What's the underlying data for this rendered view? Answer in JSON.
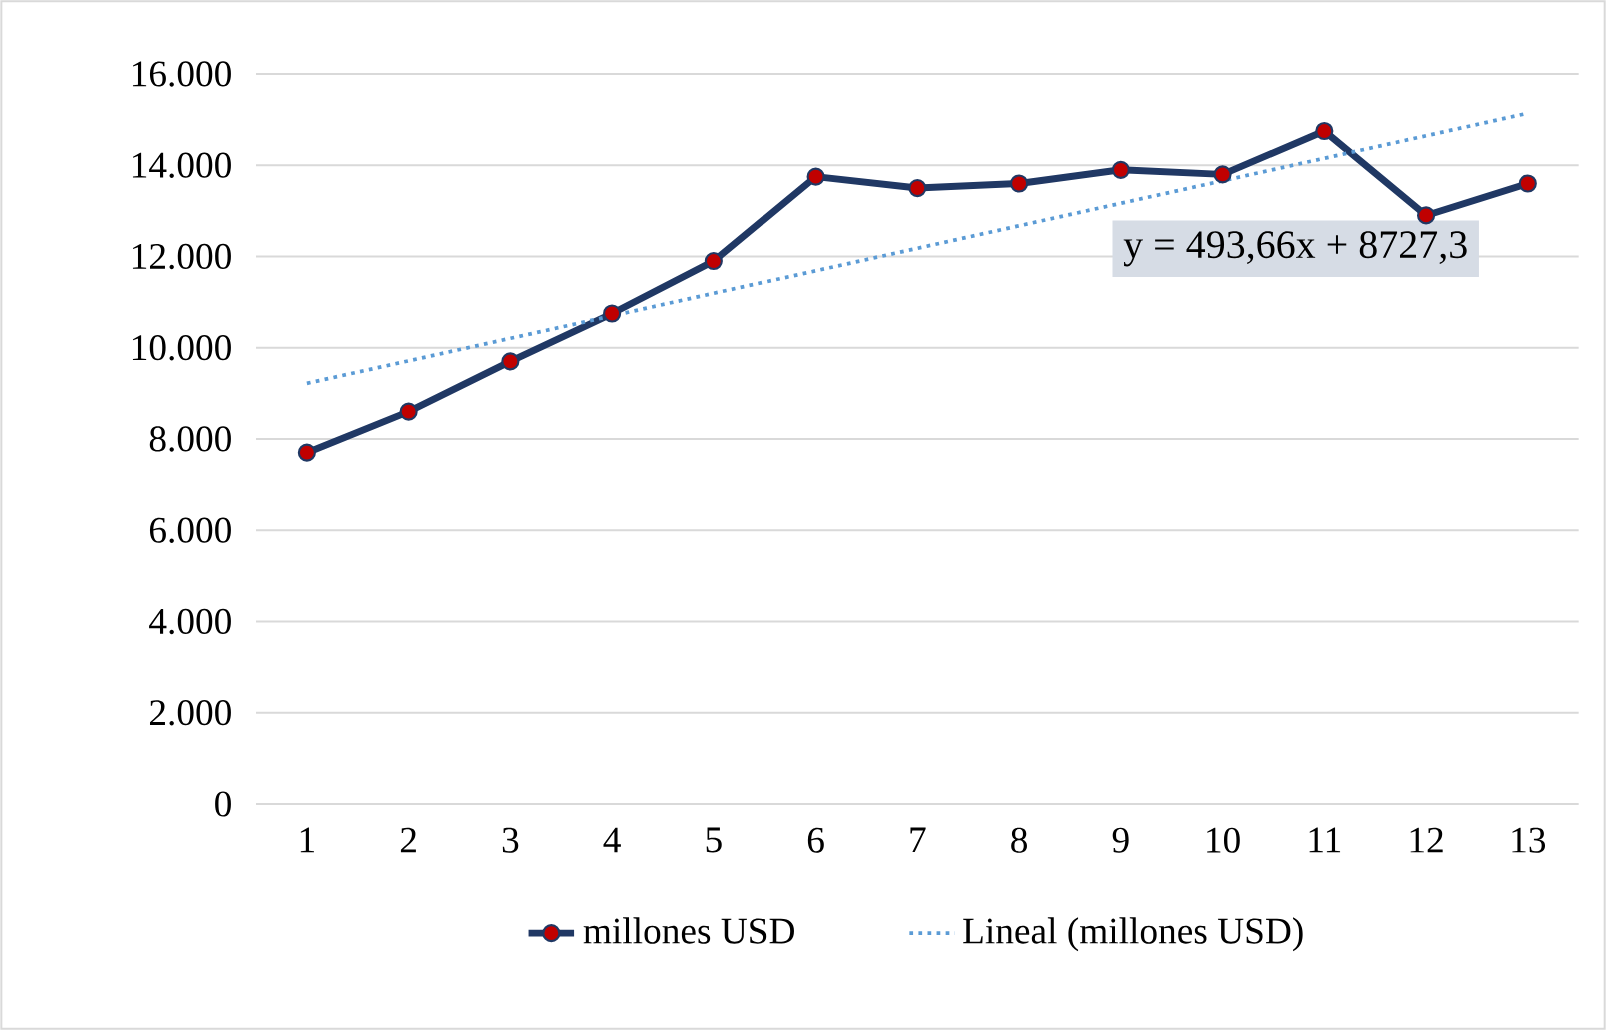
{
  "chart_data": {
    "type": "line",
    "x": [
      1,
      2,
      3,
      4,
      5,
      6,
      7,
      8,
      9,
      10,
      11,
      12,
      13
    ],
    "xlim": [
      0.5,
      13.5
    ],
    "xticks": [
      1,
      2,
      3,
      4,
      5,
      6,
      7,
      8,
      9,
      10,
      11,
      12,
      13
    ],
    "ylim": [
      0,
      16000
    ],
    "yticks": [
      {
        "value": 0,
        "label": "0"
      },
      {
        "value": 2000,
        "label": "2.000"
      },
      {
        "value": 4000,
        "label": "4.000"
      },
      {
        "value": 6000,
        "label": "6.000"
      },
      {
        "value": 8000,
        "label": "8.000"
      },
      {
        "value": 10000,
        "label": "10.000"
      },
      {
        "value": 12000,
        "label": "12.000"
      },
      {
        "value": 14000,
        "label": "14.000"
      },
      {
        "value": 16000,
        "label": "16.000"
      }
    ],
    "series": [
      {
        "name": "millones USD",
        "color": "#203864",
        "marker": "circle",
        "line_style": "solid",
        "values": [
          7700,
          8600,
          9700,
          10750,
          11900,
          13750,
          13500,
          13600,
          13900,
          13800,
          14750,
          12900,
          13600
        ]
      },
      {
        "name": "Lineal (millones USD)",
        "color": "#5b9bd5",
        "marker": "none",
        "line_style": "dotted",
        "x": [
          1,
          13
        ],
        "values": [
          9220,
          15140
        ]
      }
    ],
    "annotations": [
      "y = 493,66x + 8727,3"
    ],
    "grid": "y",
    "legend": "bottom"
  }
}
